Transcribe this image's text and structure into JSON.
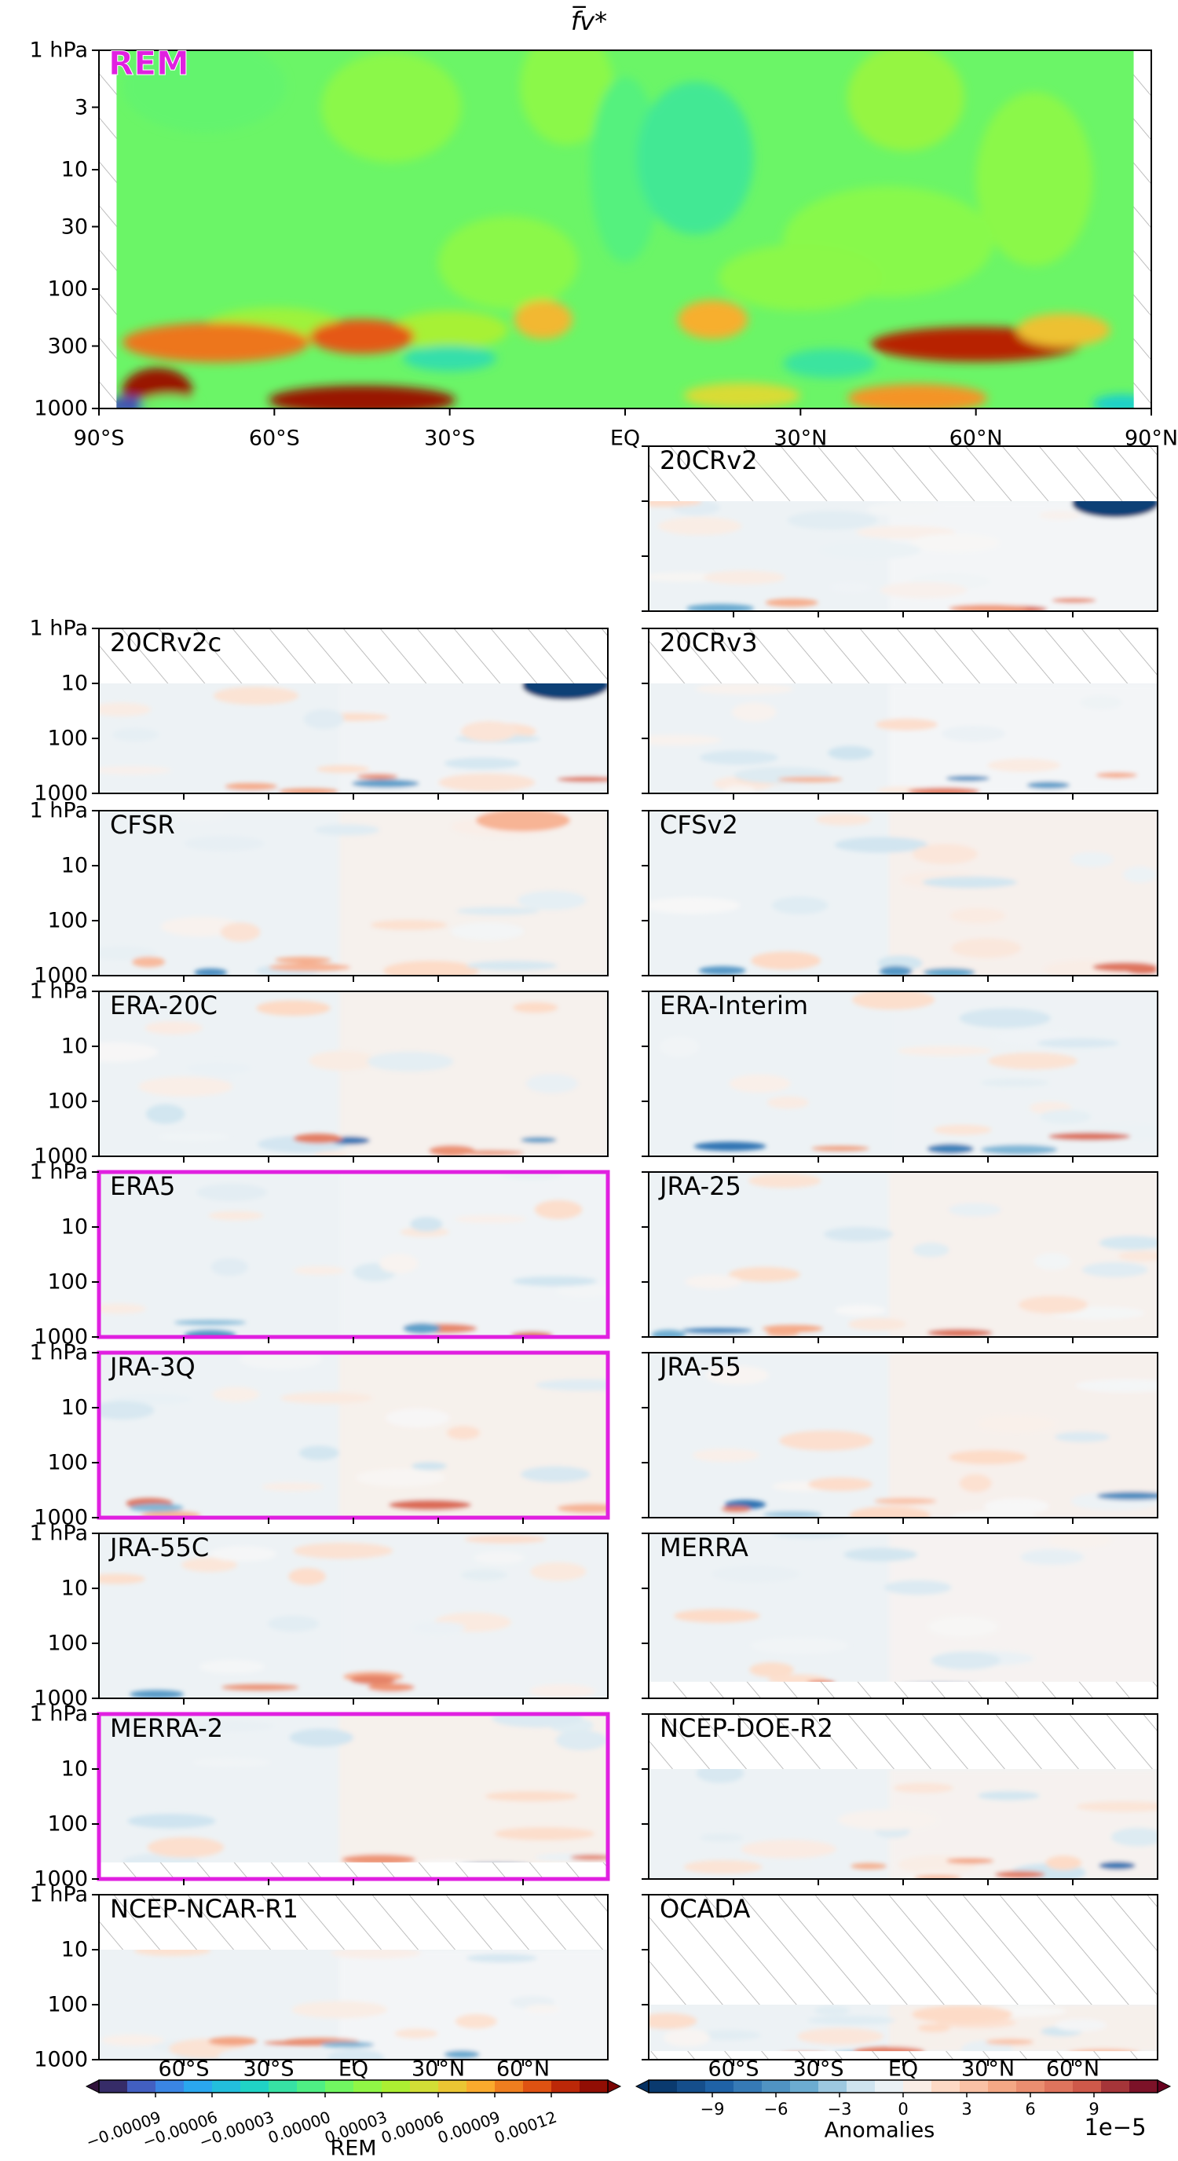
{
  "chart_data": {
    "type": "heatmap",
    "title": "f̅v*",
    "rem_panel": {
      "label": "REM",
      "label_color": "#e020e0",
      "y_ticks": [
        "1 hPa",
        "3",
        "10",
        "30",
        "100",
        "300",
        "1000"
      ],
      "x_ticks": [
        "90°S",
        "60°S",
        "30°S",
        "EQ",
        "30°N",
        "60°N",
        "90°N"
      ]
    },
    "panels": [
      {
        "name": "20CRv2",
        "col": 1,
        "row": 0,
        "highlight": false,
        "top_missing": true,
        "left_ticks": false
      },
      {
        "name": "20CRv2c",
        "col": 0,
        "row": 1,
        "highlight": false,
        "top_missing": true,
        "left_ticks": true
      },
      {
        "name": "20CRv3",
        "col": 1,
        "row": 1,
        "highlight": false,
        "top_missing": true,
        "left_ticks": false
      },
      {
        "name": "CFSR",
        "col": 0,
        "row": 2,
        "highlight": false,
        "top_missing": false,
        "left_ticks": true
      },
      {
        "name": "CFSv2",
        "col": 1,
        "row": 2,
        "highlight": false,
        "top_missing": false,
        "left_ticks": false
      },
      {
        "name": "ERA-20C",
        "col": 0,
        "row": 3,
        "highlight": false,
        "top_missing": false,
        "left_ticks": true
      },
      {
        "name": "ERA-Interim",
        "col": 1,
        "row": 3,
        "highlight": false,
        "top_missing": false,
        "left_ticks": false
      },
      {
        "name": "ERA5",
        "col": 0,
        "row": 4,
        "highlight": true,
        "top_missing": false,
        "left_ticks": true
      },
      {
        "name": "JRA-25",
        "col": 1,
        "row": 4,
        "highlight": false,
        "top_missing": false,
        "left_ticks": false
      },
      {
        "name": "JRA-3Q",
        "col": 0,
        "row": 5,
        "highlight": true,
        "top_missing": false,
        "left_ticks": true
      },
      {
        "name": "JRA-55",
        "col": 1,
        "row": 5,
        "highlight": false,
        "top_missing": false,
        "left_ticks": false
      },
      {
        "name": "JRA-55C",
        "col": 0,
        "row": 6,
        "highlight": false,
        "top_missing": false,
        "left_ticks": true
      },
      {
        "name": "MERRA",
        "col": 1,
        "row": 6,
        "highlight": false,
        "top_missing": false,
        "left_ticks": false
      },
      {
        "name": "MERRA-2",
        "col": 0,
        "row": 7,
        "highlight": true,
        "top_missing": false,
        "left_ticks": true
      },
      {
        "name": "NCEP-DOE-R2",
        "col": 1,
        "row": 7,
        "highlight": false,
        "top_missing": true,
        "left_ticks": false
      },
      {
        "name": "NCEP-NCAR-R1",
        "col": 0,
        "row": 8,
        "highlight": false,
        "top_missing": true,
        "left_ticks": true
      },
      {
        "name": "OCADA",
        "col": 1,
        "row": 8,
        "highlight": false,
        "top_missing": true,
        "left_ticks": false
      }
    ],
    "small_y_ticks": [
      "1 hPa",
      "10",
      "100",
      "1000"
    ],
    "small_x_ticks": [
      "60°S",
      "30°S",
      "EQ",
      "30°N",
      "60°N"
    ],
    "colorbars": [
      {
        "label": "REM",
        "ticks": [
          "−0.00009",
          "−0.00006",
          "−0.00003",
          "0.00000",
          "0.00003",
          "0.00006",
          "0.00009",
          "0.00012"
        ],
        "vmin": -0.00012,
        "vmax": 0.00015,
        "colormap": "rainbow"
      },
      {
        "label": "Anomalies",
        "offset": "1e−5",
        "ticks": [
          "−9",
          "−6",
          "−3",
          "0",
          "3",
          "6",
          "9"
        ],
        "vmin": -12,
        "vmax": 12,
        "colormap": "diverging-RdBu"
      }
    ],
    "highlight_color": "#e020e0"
  }
}
